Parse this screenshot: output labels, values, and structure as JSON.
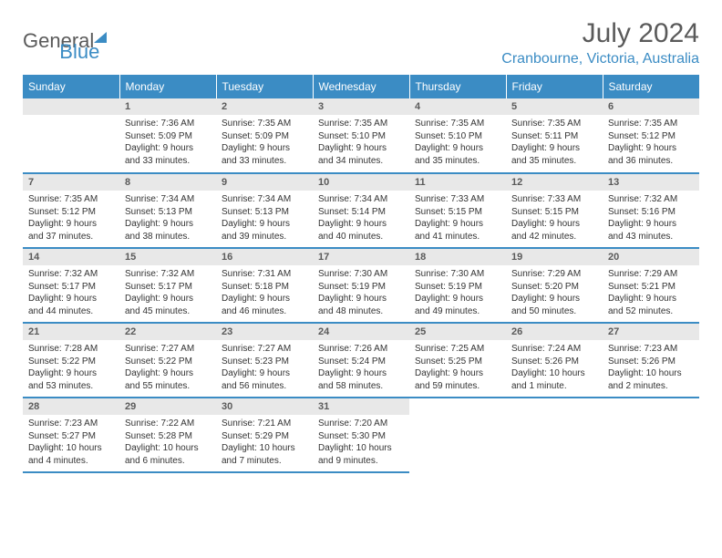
{
  "logo": {
    "text1": "General",
    "text2": "Blue"
  },
  "title": "July 2024",
  "location": "Cranbourne, Victoria, Australia",
  "colors": {
    "accent": "#3b8cc4",
    "header_bg": "#3b8cc4",
    "daynum_bg": "#e8e8e8",
    "text_gray": "#5a5a5a"
  },
  "weekdays": [
    "Sunday",
    "Monday",
    "Tuesday",
    "Wednesday",
    "Thursday",
    "Friday",
    "Saturday"
  ],
  "weeks": [
    [
      {
        "empty": true
      },
      {
        "d": "1",
        "sunrise": "Sunrise: 7:36 AM",
        "sunset": "Sunset: 5:09 PM",
        "daylight": "Daylight: 9 hours and 33 minutes."
      },
      {
        "d": "2",
        "sunrise": "Sunrise: 7:35 AM",
        "sunset": "Sunset: 5:09 PM",
        "daylight": "Daylight: 9 hours and 33 minutes."
      },
      {
        "d": "3",
        "sunrise": "Sunrise: 7:35 AM",
        "sunset": "Sunset: 5:10 PM",
        "daylight": "Daylight: 9 hours and 34 minutes."
      },
      {
        "d": "4",
        "sunrise": "Sunrise: 7:35 AM",
        "sunset": "Sunset: 5:10 PM",
        "daylight": "Daylight: 9 hours and 35 minutes."
      },
      {
        "d": "5",
        "sunrise": "Sunrise: 7:35 AM",
        "sunset": "Sunset: 5:11 PM",
        "daylight": "Daylight: 9 hours and 35 minutes."
      },
      {
        "d": "6",
        "sunrise": "Sunrise: 7:35 AM",
        "sunset": "Sunset: 5:12 PM",
        "daylight": "Daylight: 9 hours and 36 minutes."
      }
    ],
    [
      {
        "d": "7",
        "sunrise": "Sunrise: 7:35 AM",
        "sunset": "Sunset: 5:12 PM",
        "daylight": "Daylight: 9 hours and 37 minutes."
      },
      {
        "d": "8",
        "sunrise": "Sunrise: 7:34 AM",
        "sunset": "Sunset: 5:13 PM",
        "daylight": "Daylight: 9 hours and 38 minutes."
      },
      {
        "d": "9",
        "sunrise": "Sunrise: 7:34 AM",
        "sunset": "Sunset: 5:13 PM",
        "daylight": "Daylight: 9 hours and 39 minutes."
      },
      {
        "d": "10",
        "sunrise": "Sunrise: 7:34 AM",
        "sunset": "Sunset: 5:14 PM",
        "daylight": "Daylight: 9 hours and 40 minutes."
      },
      {
        "d": "11",
        "sunrise": "Sunrise: 7:33 AM",
        "sunset": "Sunset: 5:15 PM",
        "daylight": "Daylight: 9 hours and 41 minutes."
      },
      {
        "d": "12",
        "sunrise": "Sunrise: 7:33 AM",
        "sunset": "Sunset: 5:15 PM",
        "daylight": "Daylight: 9 hours and 42 minutes."
      },
      {
        "d": "13",
        "sunrise": "Sunrise: 7:32 AM",
        "sunset": "Sunset: 5:16 PM",
        "daylight": "Daylight: 9 hours and 43 minutes."
      }
    ],
    [
      {
        "d": "14",
        "sunrise": "Sunrise: 7:32 AM",
        "sunset": "Sunset: 5:17 PM",
        "daylight": "Daylight: 9 hours and 44 minutes."
      },
      {
        "d": "15",
        "sunrise": "Sunrise: 7:32 AM",
        "sunset": "Sunset: 5:17 PM",
        "daylight": "Daylight: 9 hours and 45 minutes."
      },
      {
        "d": "16",
        "sunrise": "Sunrise: 7:31 AM",
        "sunset": "Sunset: 5:18 PM",
        "daylight": "Daylight: 9 hours and 46 minutes."
      },
      {
        "d": "17",
        "sunrise": "Sunrise: 7:30 AM",
        "sunset": "Sunset: 5:19 PM",
        "daylight": "Daylight: 9 hours and 48 minutes."
      },
      {
        "d": "18",
        "sunrise": "Sunrise: 7:30 AM",
        "sunset": "Sunset: 5:19 PM",
        "daylight": "Daylight: 9 hours and 49 minutes."
      },
      {
        "d": "19",
        "sunrise": "Sunrise: 7:29 AM",
        "sunset": "Sunset: 5:20 PM",
        "daylight": "Daylight: 9 hours and 50 minutes."
      },
      {
        "d": "20",
        "sunrise": "Sunrise: 7:29 AM",
        "sunset": "Sunset: 5:21 PM",
        "daylight": "Daylight: 9 hours and 52 minutes."
      }
    ],
    [
      {
        "d": "21",
        "sunrise": "Sunrise: 7:28 AM",
        "sunset": "Sunset: 5:22 PM",
        "daylight": "Daylight: 9 hours and 53 minutes."
      },
      {
        "d": "22",
        "sunrise": "Sunrise: 7:27 AM",
        "sunset": "Sunset: 5:22 PM",
        "daylight": "Daylight: 9 hours and 55 minutes."
      },
      {
        "d": "23",
        "sunrise": "Sunrise: 7:27 AM",
        "sunset": "Sunset: 5:23 PM",
        "daylight": "Daylight: 9 hours and 56 minutes."
      },
      {
        "d": "24",
        "sunrise": "Sunrise: 7:26 AM",
        "sunset": "Sunset: 5:24 PM",
        "daylight": "Daylight: 9 hours and 58 minutes."
      },
      {
        "d": "25",
        "sunrise": "Sunrise: 7:25 AM",
        "sunset": "Sunset: 5:25 PM",
        "daylight": "Daylight: 9 hours and 59 minutes."
      },
      {
        "d": "26",
        "sunrise": "Sunrise: 7:24 AM",
        "sunset": "Sunset: 5:26 PM",
        "daylight": "Daylight: 10 hours and 1 minute."
      },
      {
        "d": "27",
        "sunrise": "Sunrise: 7:23 AM",
        "sunset": "Sunset: 5:26 PM",
        "daylight": "Daylight: 10 hours and 2 minutes."
      }
    ],
    [
      {
        "d": "28",
        "sunrise": "Sunrise: 7:23 AM",
        "sunset": "Sunset: 5:27 PM",
        "daylight": "Daylight: 10 hours and 4 minutes."
      },
      {
        "d": "29",
        "sunrise": "Sunrise: 7:22 AM",
        "sunset": "Sunset: 5:28 PM",
        "daylight": "Daylight: 10 hours and 6 minutes."
      },
      {
        "d": "30",
        "sunrise": "Sunrise: 7:21 AM",
        "sunset": "Sunset: 5:29 PM",
        "daylight": "Daylight: 10 hours and 7 minutes."
      },
      {
        "d": "31",
        "sunrise": "Sunrise: 7:20 AM",
        "sunset": "Sunset: 5:30 PM",
        "daylight": "Daylight: 10 hours and 9 minutes."
      },
      {
        "empty": true
      },
      {
        "empty": true
      },
      {
        "empty": true
      }
    ]
  ]
}
